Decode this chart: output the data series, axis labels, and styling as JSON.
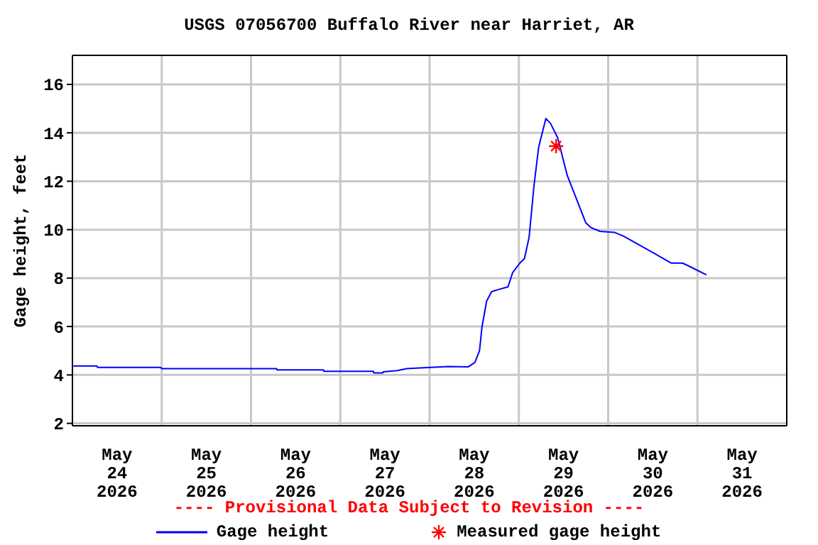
{
  "chart_data": {
    "type": "line",
    "title": "USGS 07056700 Buffalo River near Harriet, AR",
    "ylabel": "Gage height, feet",
    "annotations": [
      "---- Provisional Data Subject to Revision ----"
    ],
    "xlim": [
      "2026-05-24T00:00",
      "2026-06-01T00:00"
    ],
    "xticks": [
      {
        "value": "2026-05-24T12:00",
        "label": "May\n24\n2026"
      },
      {
        "value": "2026-05-25T00:00",
        "label": null
      },
      {
        "value": "2026-05-25T12:00",
        "label": "May\n25\n2026"
      },
      {
        "value": "2026-05-26T00:00",
        "label": null
      },
      {
        "value": "2026-05-26T12:00",
        "label": "May\n26\n2026"
      },
      {
        "value": "2026-05-27T00:00",
        "label": null
      },
      {
        "value": "2026-05-27T12:00",
        "label": "May\n27\n2026"
      },
      {
        "value": "2026-05-28T00:00",
        "label": null
      },
      {
        "value": "2026-05-28T12:00",
        "label": "May\n28\n2026"
      },
      {
        "value": "2026-05-29T00:00",
        "label": null
      },
      {
        "value": "2026-05-29T12:00",
        "label": "May\n29\n2026"
      },
      {
        "value": "2026-05-30T00:00",
        "label": null
      },
      {
        "value": "2026-05-30T12:00",
        "label": "May\n30\n2026"
      },
      {
        "value": "2026-05-31T00:00",
        "label": null
      },
      {
        "value": "2026-05-31T12:00",
        "label": "May\n31\n2026"
      }
    ],
    "ylim": [
      1.9,
      17.2
    ],
    "yticks": [
      2,
      4,
      6,
      8,
      10,
      12,
      14,
      16
    ],
    "grid": true,
    "legend": "bottom",
    "series": [
      {
        "name": "Gage height",
        "type": "line",
        "color": "#0000ff",
        "line_style": "solid",
        "x": [
          "2026-05-24T00:15",
          "2026-05-24T06:35",
          "2026-05-24T06:45",
          "2026-05-24T23:45",
          "2026-05-25T00:00",
          "2026-05-26T06:55",
          "2026-05-26T07:00",
          "2026-05-26T19:30",
          "2026-05-26T19:35",
          "2026-05-27T08:55",
          "2026-05-27T09:00",
          "2026-05-27T11:25",
          "2026-05-27T11:30",
          "2026-05-27T15:15",
          "2026-05-27T17:50",
          "2026-05-27T20:20",
          "2026-05-28T05:10",
          "2026-05-28T10:20",
          "2026-05-28T12:10",
          "2026-05-28T13:25",
          "2026-05-28T14:05",
          "2026-05-28T15:20",
          "2026-05-28T16:40",
          "2026-05-28T18:35",
          "2026-05-28T21:05",
          "2026-05-28T22:20",
          "2026-05-29T00:15",
          "2026-05-29T01:30",
          "2026-05-29T02:45",
          "2026-05-29T04:05",
          "2026-05-29T05:20",
          "2026-05-29T07:15",
          "2026-05-29T08:30",
          "2026-05-29T10:25",
          "2026-05-29T13:00",
          "2026-05-29T15:30",
          "2026-05-29T18:00",
          "2026-05-29T19:20",
          "2026-05-29T21:50",
          "2026-05-30T01:40",
          "2026-05-30T04:10",
          "2026-05-30T08:00",
          "2026-05-30T12:30",
          "2026-05-30T16:55",
          "2026-05-30T20:00",
          "2026-05-30T21:55",
          "2026-05-31T02:25"
        ],
        "values": [
          4.37,
          4.37,
          4.31,
          4.31,
          4.26,
          4.26,
          4.21,
          4.21,
          4.15,
          4.15,
          4.08,
          4.08,
          4.13,
          4.18,
          4.26,
          4.28,
          4.35,
          4.33,
          4.51,
          5.0,
          5.98,
          7.05,
          7.44,
          7.53,
          7.64,
          8.23,
          8.62,
          8.81,
          9.69,
          11.85,
          13.42,
          14.59,
          14.39,
          13.8,
          12.24,
          11.26,
          10.28,
          10.09,
          9.93,
          9.89,
          9.73,
          9.4,
          9.01,
          8.62,
          8.62,
          8.48,
          8.13
        ]
      },
      {
        "name": "Measured gage height",
        "type": "scatter",
        "color": "#ff0000",
        "marker": "cross",
        "x": [
          "2026-05-29T10:00"
        ],
        "values": [
          13.45
        ]
      }
    ]
  }
}
